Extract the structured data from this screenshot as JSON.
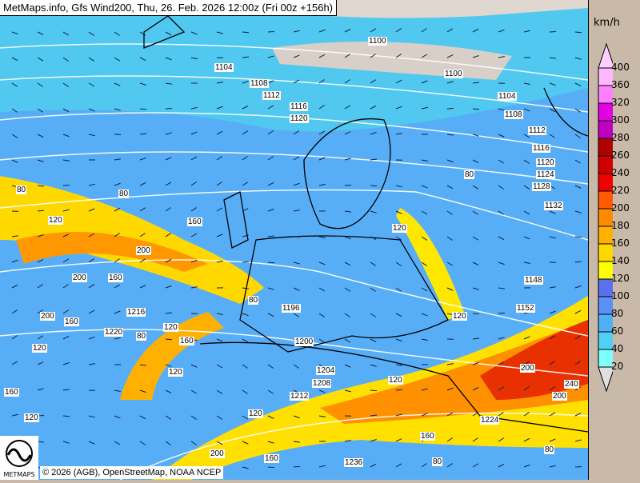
{
  "header": {
    "title": "MetMaps.info, Gfs Wind200, Thu, 26. Feb. 2026 12:00z (Fri 00z +156h)"
  },
  "legend": {
    "unit": "km/h",
    "labels": [
      "400",
      "360",
      "320",
      "300",
      "280",
      "260",
      "240",
      "220",
      "200",
      "180",
      "160",
      "140",
      "120",
      "100",
      "80",
      "60",
      "40",
      "20"
    ],
    "colors": [
      "#ffb8ff",
      "#ff80ff",
      "#e000e0",
      "#c000c0",
      "#b00000",
      "#d00000",
      "#f00000",
      "#ff5a00",
      "#ff8c00",
      "#ffb000",
      "#ffd800",
      "#ffff00",
      "#5a70f0",
      "#5a90f8",
      "#50b0f4",
      "#50d0f4",
      "#80ffff"
    ],
    "top_arrow_color": "#ffd0ff",
    "bottom_arrow_color": "#e0e0e0"
  },
  "map": {
    "isobar_labels": [
      "1100",
      "1104",
      "1108",
      "1112",
      "1116",
      "1120",
      "1100",
      "1104",
      "1108",
      "1112",
      "1116",
      "1120",
      "1124",
      "1128",
      "1132",
      "1196",
      "1200",
      "1204",
      "1208",
      "1212",
      "1216",
      "1220",
      "1224",
      "1236",
      "1148",
      "1152"
    ],
    "wind_labels": [
      "80",
      "80",
      "120",
      "160",
      "200",
      "200",
      "160",
      "120",
      "160",
      "200",
      "120",
      "80",
      "120",
      "160",
      "80",
      "120",
      "80",
      "120",
      "120",
      "160",
      "200",
      "240",
      "200",
      "80",
      "120",
      "160",
      "200",
      "120",
      "80",
      "160"
    ]
  },
  "footer": {
    "copyright": "© 2026 (AGB), OpenStreetMap, NOAA NCEP",
    "logo_text": "METMAPS"
  }
}
